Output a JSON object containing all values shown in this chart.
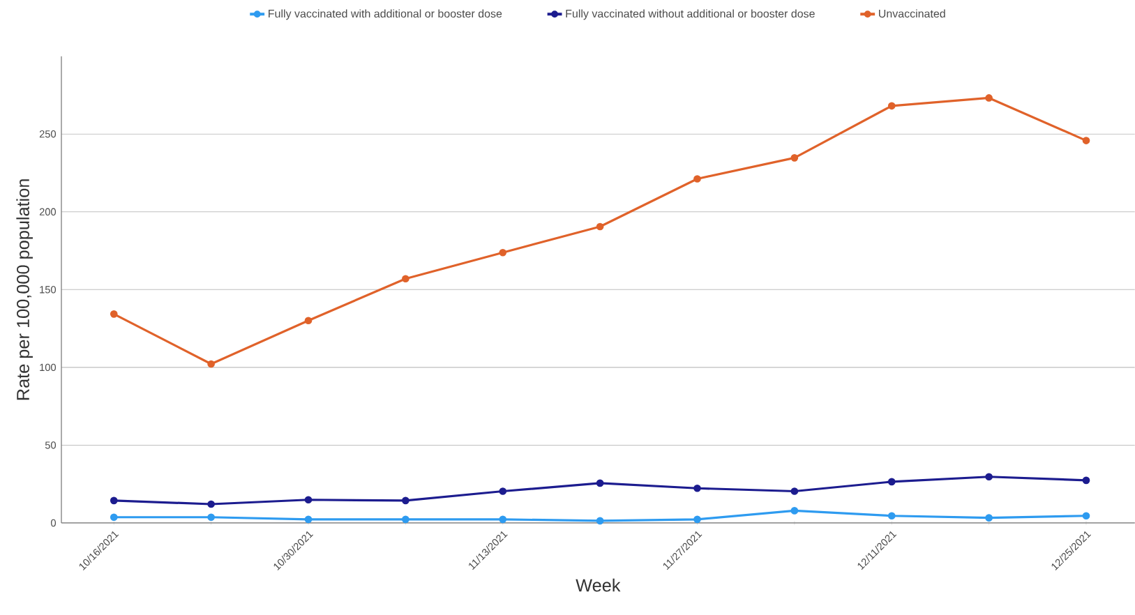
{
  "chart_data": {
    "type": "line",
    "xlabel": "Week",
    "ylabel": "Rate per 100,000 population",
    "categories": [
      "10/16/2021",
      null,
      "10/30/2021",
      null,
      "11/13/2021",
      null,
      "11/27/2021",
      null,
      "12/11/2021",
      null,
      "12/25/2021"
    ],
    "series": [
      {
        "name": "Fully vaccinated with additional or booster dose",
        "color": "#2e9bf0",
        "values": [
          3.7,
          3.7,
          2.3,
          2.3,
          2.3,
          1.4,
          2.3,
          7.9,
          4.6,
          3.3,
          4.6
        ]
      },
      {
        "name": "Fully vaccinated without additional or booster dose",
        "color": "#1c1c8f",
        "values": [
          14.4,
          12.1,
          14.9,
          14.4,
          20.4,
          25.6,
          22.3,
          20.4,
          26.5,
          29.7,
          27.4
        ]
      },
      {
        "name": "Unvaccinated",
        "color": "#e0622a",
        "values": [
          134.3,
          102.2,
          130.1,
          157,
          173.8,
          190.5,
          221.2,
          234.7,
          268.1,
          273.2,
          245.8
        ]
      }
    ],
    "ylim": [
      0,
      300
    ],
    "yticks": [
      0,
      50,
      100,
      150,
      200,
      250
    ],
    "grid": "y",
    "legend": "top",
    "marker": "circle",
    "line_style": "solid"
  }
}
